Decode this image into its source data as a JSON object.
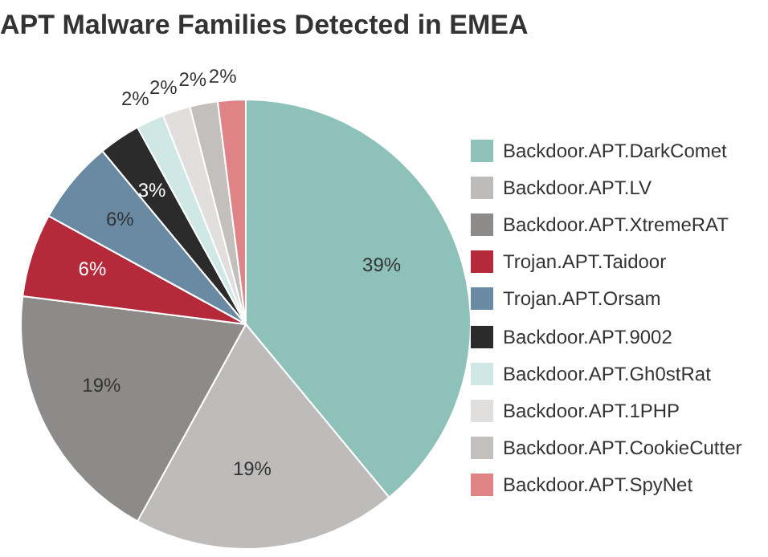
{
  "chart_data": {
    "type": "pie",
    "title": "APT Malware Families Detected in EMEA",
    "categories": [
      "Backdoor.APT.DarkComet",
      "Backdoor.APT.LV",
      "Backdoor.APT.XtremeRAT",
      "Trojan.APT.Taidoor",
      "Trojan.APT.Orsam",
      "Backdoor.APT.9002",
      "Backdoor.APT.Gh0stRat",
      "Backdoor.APT.1PHP",
      "Backdoor.APT.CookieCutter",
      "Backdoor.APT.SpyNet"
    ],
    "values": [
      39,
      19,
      19,
      6,
      6,
      3,
      2,
      2,
      2,
      2
    ],
    "value_labels": [
      "39%",
      "19%",
      "19%",
      "6%",
      "6%",
      "3%",
      "2%",
      "2%",
      "2%",
      "2%"
    ],
    "colors": [
      "#8fc1bb",
      "#bdbcbb",
      "#8c8b89",
      "#b52a3a",
      "#6a89a3",
      "#2b2b2b",
      "#cfe8e6",
      "#e0dfdd",
      "#c2bfbd",
      "#e08386"
    ],
    "legend": "right"
  }
}
